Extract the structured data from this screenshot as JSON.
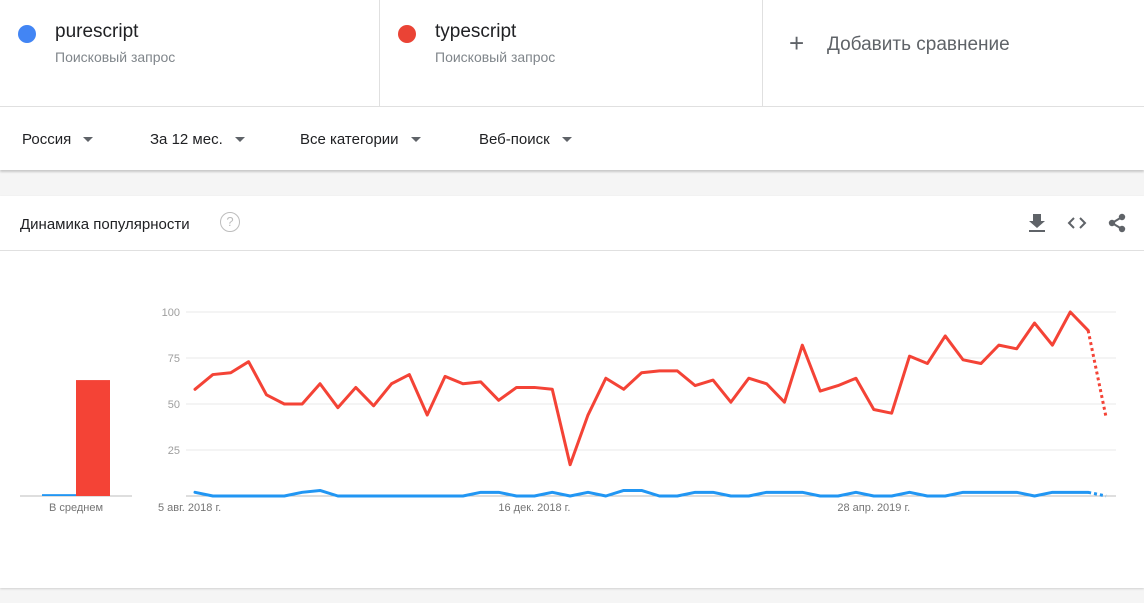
{
  "terms": [
    {
      "name": "purescript",
      "subtitle": "Поисковый запрос",
      "color": "#4285f4"
    },
    {
      "name": "typescript",
      "subtitle": "Поисковый запрос",
      "color": "#ea4335"
    }
  ],
  "add_comparison": {
    "label": "Добавить сравнение",
    "icon": "plus-icon"
  },
  "filters": {
    "region": "Россия",
    "period": "За 12 мес.",
    "category": "Все категории",
    "search_type": "Веб-поиск"
  },
  "card": {
    "title": "Динамика популярности",
    "help_icon": "question-mark-icon",
    "tools": [
      "download-icon",
      "embed-code-icon",
      "share-icon"
    ]
  },
  "chart_data": {
    "type": "line",
    "ylim": [
      0,
      100
    ],
    "yticks": [
      25,
      50,
      75,
      100
    ],
    "grid": true,
    "x_tick_labels": [
      "5 авг. 2018 г.",
      "16 дек. 2018 г.",
      "28 апр. 2019 г."
    ],
    "x_tick_positions": [
      0,
      19,
      38
    ],
    "partial_last_point": true,
    "series": [
      {
        "name": "typescript",
        "color": "#f44336",
        "values": [
          58,
          66,
          67,
          73,
          55,
          50,
          50,
          61,
          48,
          59,
          49,
          61,
          66,
          44,
          65,
          61,
          62,
          52,
          59,
          59,
          58,
          17,
          44,
          64,
          58,
          67,
          68,
          68,
          60,
          63,
          51,
          64,
          61,
          51,
          82,
          57,
          60,
          64,
          47,
          45,
          76,
          72,
          87,
          74,
          72,
          82,
          80,
          94,
          82,
          100,
          90,
          43
        ]
      },
      {
        "name": "purescript",
        "color": "#2196f3",
        "values": [
          2,
          0,
          0,
          0,
          0,
          0,
          2,
          3,
          0,
          0,
          0,
          0,
          0,
          0,
          0,
          0,
          2,
          2,
          0,
          0,
          2,
          0,
          2,
          0,
          3,
          3,
          0,
          0,
          2,
          2,
          0,
          0,
          2,
          2,
          2,
          0,
          0,
          2,
          0,
          0,
          2,
          0,
          0,
          2,
          2,
          2,
          2,
          0,
          2,
          2,
          2,
          0
        ]
      }
    ],
    "average": {
      "label": "В среднем",
      "values": [
        {
          "name": "purescript",
          "value": 1
        },
        {
          "name": "typescript",
          "value": 63
        }
      ]
    }
  }
}
